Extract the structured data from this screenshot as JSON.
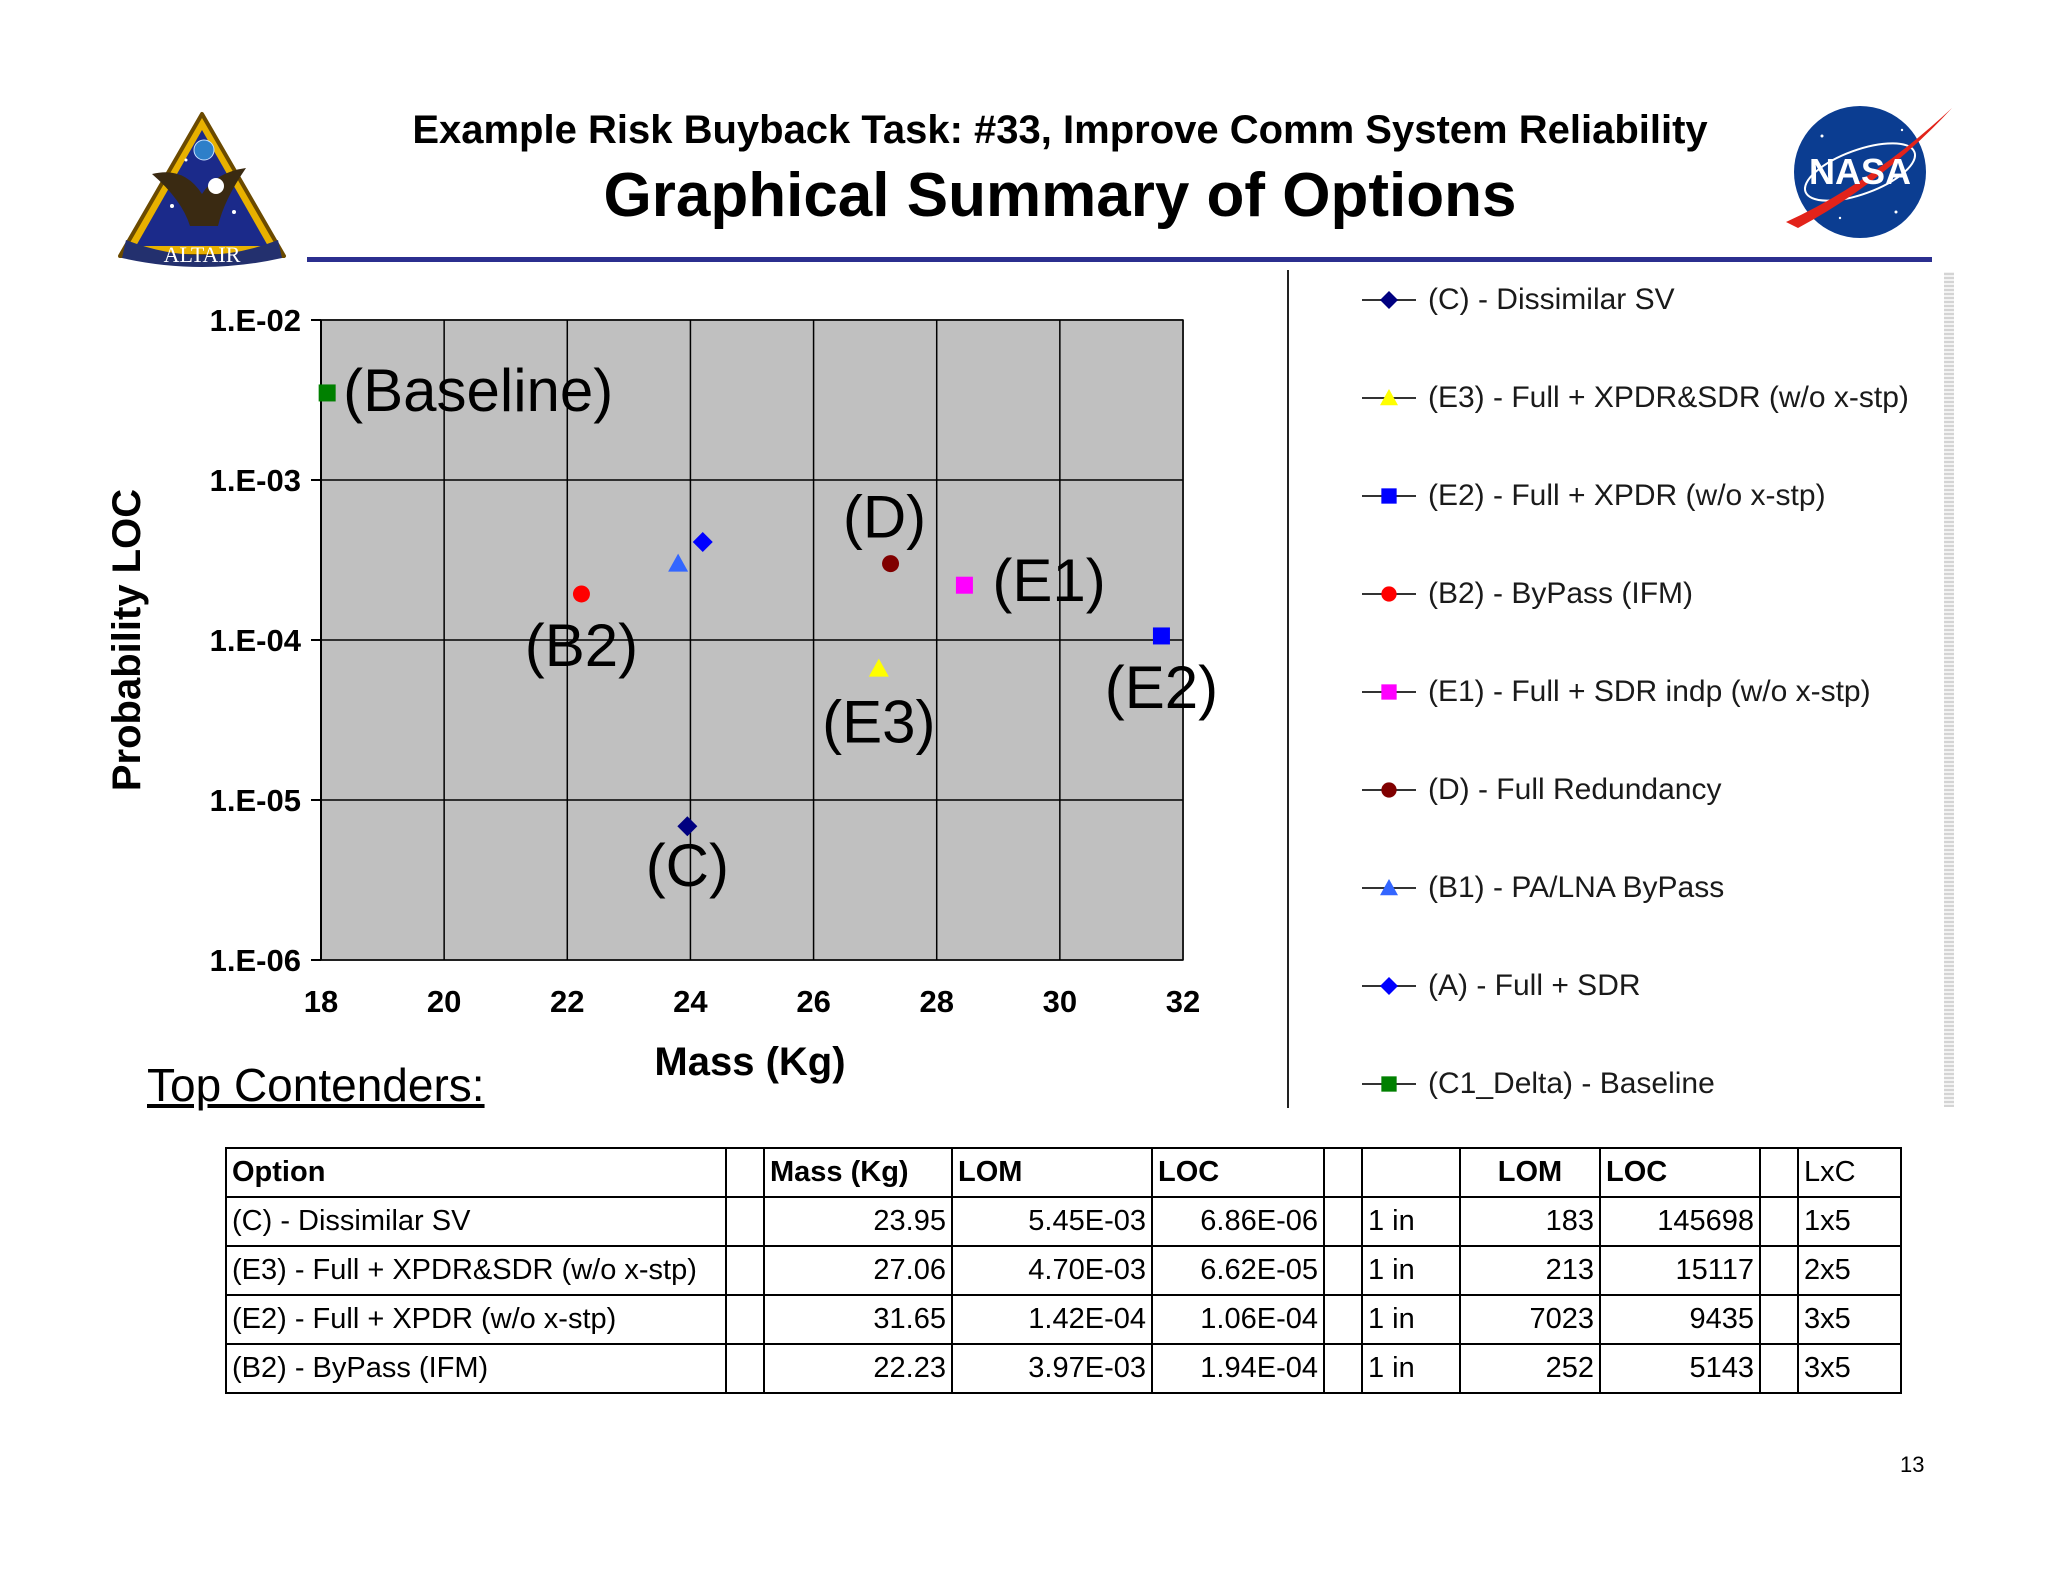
{
  "header": {
    "subtitle": "Example Risk Buyback Task: #33, Improve Comm System Reliability",
    "title": "Graphical Summary of Options",
    "left_logo_text": "ALTAIR",
    "right_logo_text": "NASA",
    "rule_color": "#2b2f8f"
  },
  "chart_data": {
    "type": "scatter",
    "xlabel": "Mass (Kg)",
    "ylabel": "Probability LOC",
    "xlim": [
      18,
      32
    ],
    "ylim": [
      1e-06,
      0.01
    ],
    "y_scale": "log",
    "grid": true,
    "legend_position": "right",
    "plot_background": "#c0c0c0",
    "x_ticks": [
      "18",
      "20",
      "22",
      "24",
      "26",
      "28",
      "30",
      "32"
    ],
    "y_ticks": [
      {
        "value": 0.01,
        "label": "1.E-02"
      },
      {
        "value": 0.001,
        "label": "1.E-03"
      },
      {
        "value": 0.0001,
        "label": "1.E-04"
      },
      {
        "value": 1e-05,
        "label": "1.E-05"
      },
      {
        "value": 1e-06,
        "label": "1.E-06"
      }
    ],
    "series": [
      {
        "name": "(C) - Dissimilar SV",
        "marker": "diamond",
        "color": "#000080",
        "x": 23.95,
        "y": 6.86e-06,
        "annotation": "(C)"
      },
      {
        "name": "(E3) - Full + XPDR&SDR (w/o x-stp)",
        "marker": "triangle",
        "color": "#ffff00",
        "x": 27.06,
        "y": 6.62e-05,
        "annotation": "(E3)"
      },
      {
        "name": "(E2) - Full + XPDR  (w/o x-stp)",
        "marker": "square",
        "color": "#0000ff",
        "x": 31.65,
        "y": 0.000106,
        "annotation": "(E2)"
      },
      {
        "name": "(B2) - ByPass (IFM)",
        "marker": "circle",
        "color": "#ff0000",
        "x": 22.23,
        "y": 0.000194,
        "annotation": "(B2)"
      },
      {
        "name": "(E1) - Full + SDR indp (w/o x-stp)",
        "marker": "square",
        "color": "#ff00ff",
        "x": 28.45,
        "y": 0.00022,
        "annotation": "(E1)"
      },
      {
        "name": "(D) - Full Redundancy",
        "marker": "circle",
        "color": "#800000",
        "x": 27.25,
        "y": 0.0003,
        "annotation": "(D)"
      },
      {
        "name": "(B1) - PA/LNA ByPass",
        "marker": "triangle",
        "color": "#3366ff",
        "x": 23.8,
        "y": 0.0003,
        "annotation": ""
      },
      {
        "name": "(A) - Full + SDR",
        "marker": "diamond",
        "color": "#0000ff",
        "x": 24.2,
        "y": 0.00041,
        "annotation": ""
      },
      {
        "name": "(C1_Delta) - Baseline",
        "marker": "square",
        "color": "#008000",
        "x": 18.1,
        "y": 0.0035,
        "annotation": "(Baseline)"
      }
    ]
  },
  "top_contenders": {
    "label": "Top Contenders:",
    "headers": [
      "Option",
      "",
      "Mass (Kg)",
      "LOM",
      "LOC",
      "",
      "",
      "LOM",
      "LOC",
      "",
      "LxC"
    ],
    "rows": [
      [
        "(C) - Dissimilar SV",
        "",
        "23.95",
        "5.45E-03",
        "6.86E-06",
        "",
        "1 in",
        "183",
        "145698",
        "",
        "1x5"
      ],
      [
        "(E3) - Full + XPDR&SDR (w/o x-stp)",
        "",
        "27.06",
        "4.70E-03",
        "6.62E-05",
        "",
        "1 in",
        "213",
        "15117",
        "",
        "2x5"
      ],
      [
        "(E2) - Full + XPDR  (w/o x-stp)",
        "",
        "31.65",
        "1.42E-04",
        "1.06E-04",
        "",
        "1 in",
        "7023",
        "9435",
        "",
        "3x5"
      ],
      [
        "(B2) - ByPass (IFM)",
        "",
        "22.23",
        "3.97E-03",
        "1.94E-04",
        "",
        "1 in",
        "252",
        "5143",
        "",
        "3x5"
      ]
    ]
  },
  "page_number": "13"
}
